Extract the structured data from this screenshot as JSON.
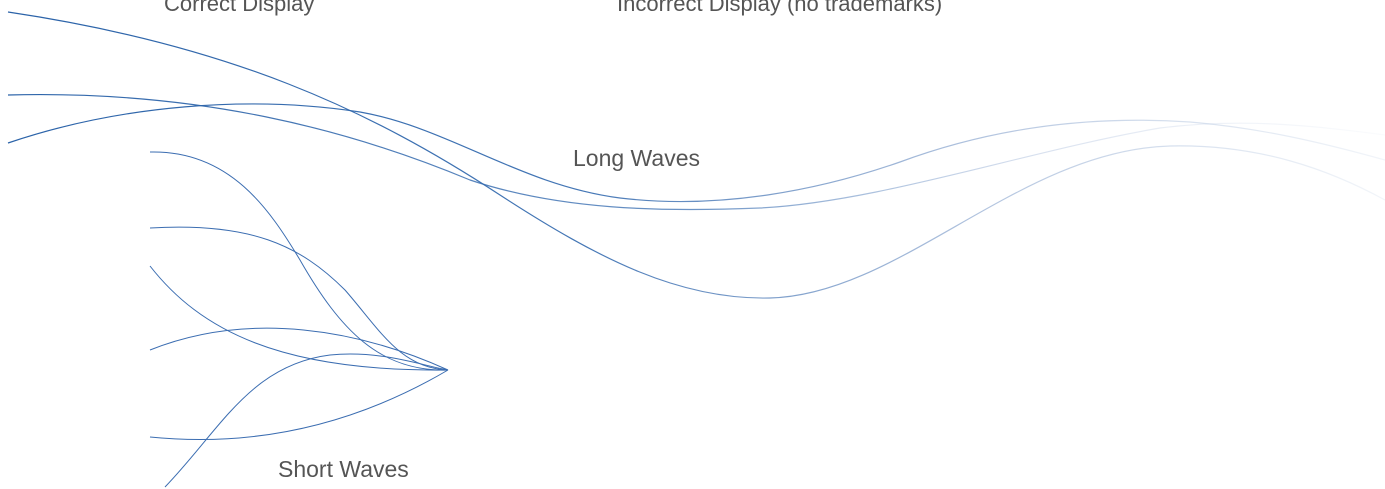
{
  "labels": {
    "correct_display": "Correct Display",
    "incorrect_display": "Incorrect Display (no trademarks)",
    "long_waves": "Long Waves",
    "short_waves": "Short Waves"
  },
  "colors": {
    "wave_dark": "#2a62a8",
    "wave_light": "#c9d6e8",
    "text": "#555555"
  }
}
